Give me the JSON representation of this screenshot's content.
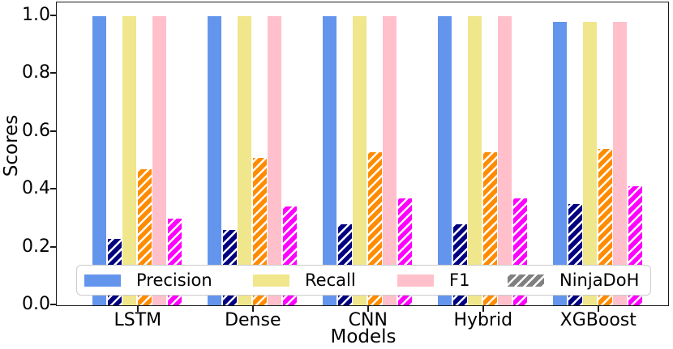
{
  "chart_data": {
    "type": "bar",
    "title": "",
    "xlabel": "Models",
    "ylabel": "Scores",
    "categories": [
      "LSTM",
      "Dense",
      "CNN",
      "Hybrid",
      "XGBoost"
    ],
    "series": [
      {
        "name": "Precision",
        "metric": "Precision",
        "dataset": "base",
        "color": "#6495ED",
        "hatch": false,
        "values": [
          1.0,
          1.0,
          1.0,
          1.0,
          0.98
        ]
      },
      {
        "name": "Precision NinjaDoH",
        "metric": "Precision",
        "dataset": "NinjaDoH",
        "color": "#000080",
        "hatch": true,
        "values": [
          0.23,
          0.26,
          0.28,
          0.28,
          0.35
        ]
      },
      {
        "name": "Recall",
        "metric": "Recall",
        "dataset": "base",
        "color": "#F0E68C",
        "hatch": false,
        "values": [
          1.0,
          1.0,
          1.0,
          1.0,
          0.98
        ]
      },
      {
        "name": "Recall NinjaDoH",
        "metric": "Recall",
        "dataset": "NinjaDoH",
        "color": "#FF8C00",
        "hatch": true,
        "values": [
          0.47,
          0.51,
          0.53,
          0.53,
          0.54
        ]
      },
      {
        "name": "F1",
        "metric": "F1",
        "dataset": "base",
        "color": "#FFC0CB",
        "hatch": false,
        "values": [
          1.0,
          1.0,
          1.0,
          1.0,
          0.98
        ]
      },
      {
        "name": "F1 NinjaDoH",
        "metric": "F1",
        "dataset": "NinjaDoH",
        "color": "#FF00FF",
        "hatch": true,
        "values": [
          0.3,
          0.34,
          0.37,
          0.37,
          0.41
        ]
      }
    ],
    "ylim": [
      0,
      1.05
    ],
    "yticks": [
      0.0,
      0.2,
      0.4,
      0.6,
      0.8,
      1.0
    ],
    "grid": false,
    "legend": {
      "position": "lower center",
      "entries": [
        {
          "label": "Precision",
          "color": "#6495ED",
          "hatch": false
        },
        {
          "label": "Recall",
          "color": "#F0E68C",
          "hatch": false
        },
        {
          "label": "F1",
          "color": "#FFC0CB",
          "hatch": false
        },
        {
          "label": "NinjaDoH",
          "color": "#808080",
          "hatch": true
        }
      ]
    }
  },
  "colors": {
    "background": "#ffffff",
    "spine": "#1a1a1a",
    "hatch_line": "#ffffff",
    "legend_border": "#cccccc",
    "text": "#000000"
  }
}
